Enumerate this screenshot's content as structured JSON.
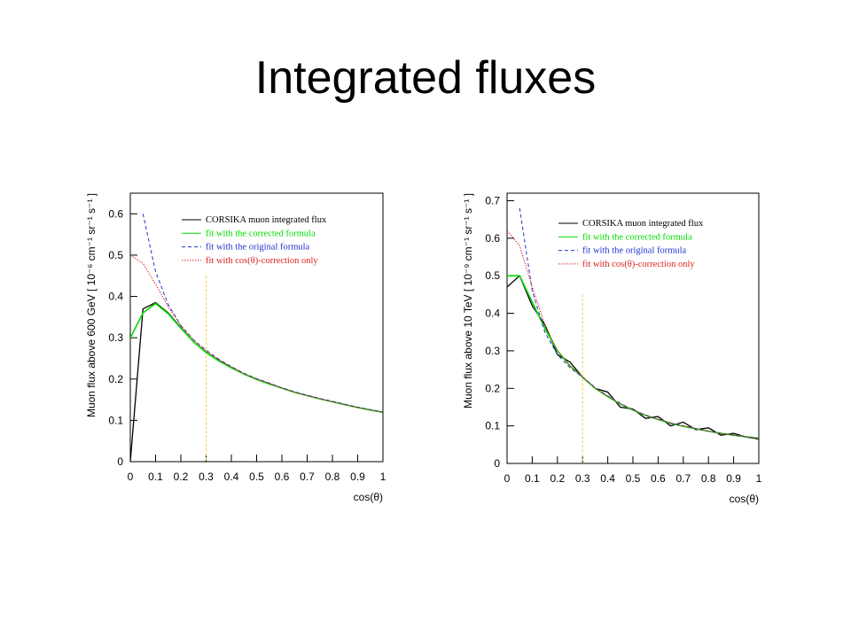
{
  "title": "Integrated fluxes",
  "chart_data": [
    {
      "type": "line",
      "ylabel": "Muon flux above 600 GeV [ 10⁻⁶ cm⁻¹ sr⁻¹ s⁻¹ ]",
      "xlabel": "cos(θ)",
      "x": [
        0,
        0.05,
        0.1,
        0.15,
        0.2,
        0.25,
        0.3,
        0.35,
        0.4,
        0.45,
        0.5,
        0.55,
        0.6,
        0.65,
        0.7,
        0.75,
        0.8,
        0.85,
        0.9,
        0.95,
        1
      ],
      "xlim": [
        0,
        1
      ],
      "xticks": [
        0,
        0.1,
        0.2,
        0.3,
        0.4,
        0.5,
        0.6,
        0.7,
        0.8,
        0.9,
        1
      ],
      "ylim": [
        0,
        0.65
      ],
      "yticks": [
        0,
        0.1,
        0.2,
        0.3,
        0.4,
        0.5,
        0.6
      ],
      "vline": 0.3,
      "vline_color": "#f0d040",
      "legend": "top-right",
      "series": [
        {
          "name": "CORSIKA muon integrated flux",
          "color": "#000000",
          "line_style": "solid",
          "values": [
            0,
            0.37,
            0.385,
            0.36,
            0.325,
            0.29,
            0.265,
            0.245,
            0.228,
            0.212,
            0.2,
            0.189,
            0.178,
            0.168,
            0.16,
            0.152,
            0.145,
            0.138,
            0.131,
            0.125,
            0.12
          ]
        },
        {
          "name": "fit with the corrected formula",
          "color": "#00dd00",
          "line_style": "solid",
          "values": [
            0.3,
            0.36,
            0.383,
            0.358,
            0.323,
            0.29,
            0.264,
            0.244,
            0.227,
            0.212,
            0.199,
            0.188,
            0.178,
            0.168,
            0.16,
            0.152,
            0.145,
            0.138,
            0.131,
            0.125,
            0.119
          ]
        },
        {
          "name": "fit with the original formula",
          "color": "#2233cc",
          "line_style": "dashed",
          "values": [
            null,
            0.6,
            0.46,
            0.38,
            0.33,
            0.295,
            0.27,
            0.248,
            0.23,
            0.214,
            0.201,
            0.19,
            0.179,
            0.169,
            0.161,
            0.153,
            0.146,
            0.139,
            0.132,
            0.126,
            0.12
          ]
        },
        {
          "name": "fit with cos(θ)-correction only",
          "color": "#dd2222",
          "line_style": "dotted",
          "values": [
            0.5,
            0.48,
            0.43,
            0.375,
            0.33,
            0.295,
            0.268,
            0.247,
            0.229,
            0.213,
            0.2,
            0.189,
            0.178,
            0.168,
            0.16,
            0.152,
            0.145,
            0.138,
            0.131,
            0.125,
            0.12
          ]
        }
      ]
    },
    {
      "type": "line",
      "ylabel": "Muon flux above 10 TeV [ 10⁻⁹ cm⁻¹ sr⁻¹ s⁻¹ ]",
      "xlabel": "cos(θ)",
      "x": [
        0,
        0.05,
        0.1,
        0.15,
        0.2,
        0.25,
        0.3,
        0.35,
        0.4,
        0.45,
        0.5,
        0.55,
        0.6,
        0.65,
        0.7,
        0.75,
        0.8,
        0.85,
        0.9,
        0.95,
        1
      ],
      "xlim": [
        0,
        1
      ],
      "xticks": [
        0,
        0.1,
        0.2,
        0.3,
        0.4,
        0.5,
        0.6,
        0.7,
        0.8,
        0.9,
        1
      ],
      "ylim": [
        0,
        0.72
      ],
      "yticks": [
        0,
        0.1,
        0.2,
        0.3,
        0.4,
        0.5,
        0.6,
        0.7
      ],
      "vline": 0.3,
      "vline_color": "#f0d040",
      "legend": "top-right",
      "series": [
        {
          "name": "CORSIKA muon integrated flux",
          "color": "#000000",
          "line_style": "solid",
          "values": [
            0.47,
            0.5,
            0.42,
            0.37,
            0.29,
            0.27,
            0.23,
            0.2,
            0.19,
            0.15,
            0.145,
            0.12,
            0.125,
            0.1,
            0.11,
            0.09,
            0.095,
            0.075,
            0.08,
            0.07,
            0.065
          ]
        },
        {
          "name": "fit with the corrected formula",
          "color": "#00dd00",
          "line_style": "solid",
          "values": [
            0.5,
            0.5,
            0.43,
            0.36,
            0.3,
            0.26,
            0.23,
            0.2,
            0.178,
            0.158,
            0.142,
            0.128,
            0.117,
            0.107,
            0.099,
            0.092,
            0.086,
            0.08,
            0.075,
            0.071,
            0.067
          ]
        },
        {
          "name": "fit with the original formula",
          "color": "#2233cc",
          "line_style": "dashed",
          "values": [
            null,
            0.68,
            0.46,
            0.35,
            0.29,
            0.255,
            0.23,
            0.202,
            0.18,
            0.16,
            0.143,
            0.129,
            0.118,
            0.108,
            0.1,
            0.093,
            0.086,
            0.08,
            0.075,
            0.071,
            0.067
          ]
        },
        {
          "name": "fit with cos(θ)-correction only",
          "color": "#dd2222",
          "line_style": "dotted",
          "values": [
            0.62,
            0.58,
            0.47,
            0.37,
            0.3,
            0.26,
            0.23,
            0.201,
            0.179,
            0.159,
            0.143,
            0.129,
            0.118,
            0.108,
            0.1,
            0.093,
            0.086,
            0.08,
            0.075,
            0.071,
            0.067
          ]
        }
      ]
    }
  ]
}
